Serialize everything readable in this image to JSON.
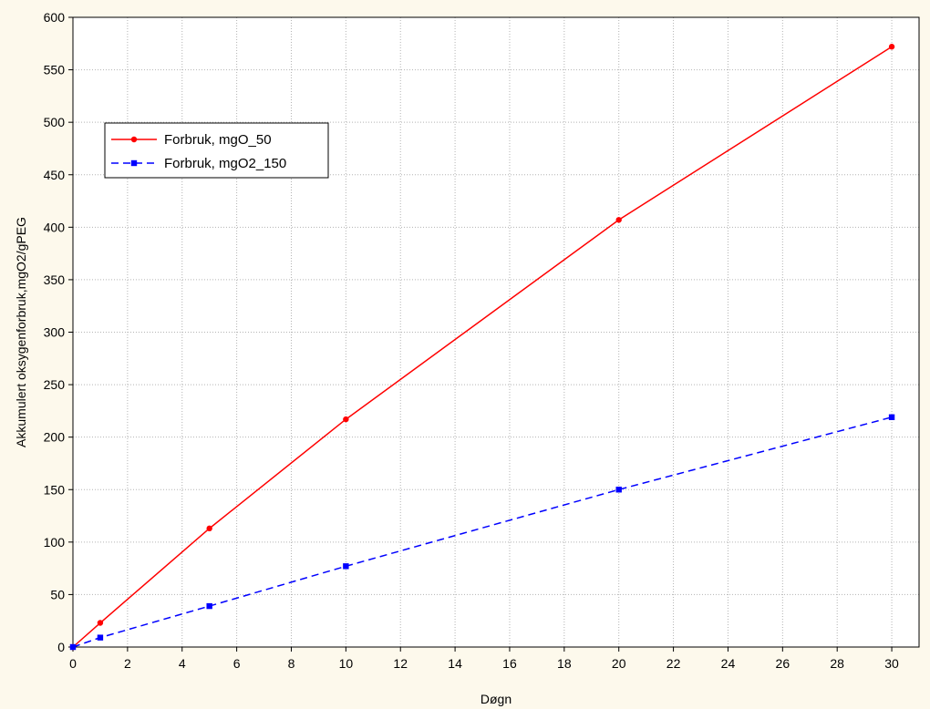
{
  "chart_data": {
    "type": "line",
    "xlabel": "Døgn",
    "ylabel": "Akkumulert oksygenforbruk,mgO2/gPEG",
    "xlim": [
      0,
      31
    ],
    "ylim": [
      0,
      600
    ],
    "xticks": [
      0,
      2,
      4,
      6,
      8,
      10,
      12,
      14,
      16,
      18,
      20,
      22,
      24,
      26,
      28,
      30
    ],
    "yticks": [
      0,
      50,
      100,
      150,
      200,
      250,
      300,
      350,
      400,
      450,
      500,
      550,
      600
    ],
    "grid": true,
    "legend_position": "upper-left",
    "series": [
      {
        "name": "Forbruk, mgO_50",
        "color": "#ff0000",
        "line_style": "solid",
        "marker": "circle",
        "x": [
          0,
          1,
          5,
          10,
          20,
          30
        ],
        "y": [
          0,
          23,
          113,
          217,
          407,
          572
        ]
      },
      {
        "name": "Forbruk, mgO2_150",
        "color": "#0000ff",
        "line_style": "dashed",
        "marker": "square",
        "x": [
          0,
          1,
          5,
          10,
          20,
          30
        ],
        "y": [
          0,
          9,
          39,
          77,
          150,
          219
        ]
      }
    ]
  }
}
